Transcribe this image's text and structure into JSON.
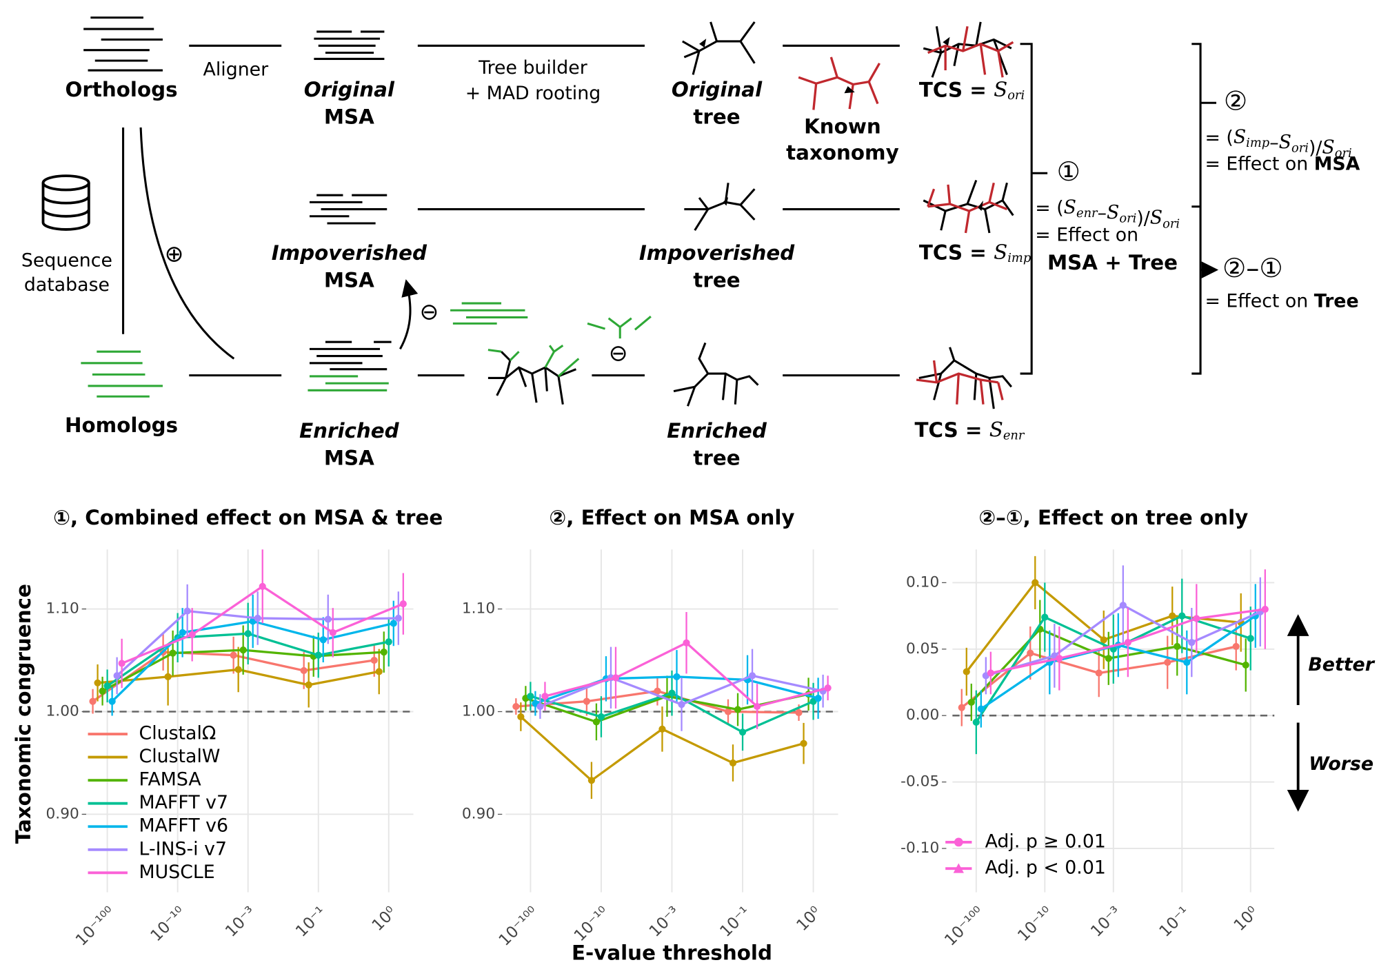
{
  "diagram": {
    "orthologs": "Orthologs",
    "aligner": "Aligner",
    "original_msa": [
      "Original",
      "MSA"
    ],
    "tree_builder": [
      "Tree builder",
      "+ MAD rooting"
    ],
    "original_tree": [
      "Original",
      "tree"
    ],
    "known_taxonomy": [
      "Known",
      "taxonomy"
    ],
    "sequence_database": [
      "Sequence",
      "database"
    ],
    "plus": "⊕",
    "minus": "⊖",
    "homologs": "Homologs",
    "impoverished_msa": [
      "Impoverished",
      "MSA"
    ],
    "impoverished_tree": [
      "Impoverished",
      "tree"
    ],
    "enriched_msa": [
      "Enriched",
      "MSA"
    ],
    "enriched_tree": [
      "Enriched",
      "tree"
    ],
    "tcs_ori": [
      {
        "t": "TCS = "
      },
      {
        "t": "S",
        "sub": "ori"
      }
    ],
    "tcs_imp": [
      {
        "t": "TCS = "
      },
      {
        "t": "S",
        "sub": "imp"
      }
    ],
    "tcs_enr": [
      {
        "t": "TCS = "
      },
      {
        "t": "S",
        "sub": "enr"
      }
    ],
    "one": "①",
    "effect1_formula": [
      {
        "t": "= ("
      },
      {
        "t": "S",
        "sub": "enr"
      },
      {
        "t": "–"
      },
      {
        "t": "S",
        "sub": "ori"
      },
      {
        "t": ")/"
      },
      {
        "t": "S",
        "sub": "ori"
      }
    ],
    "effect1": [
      "= Effect on",
      "MSA + Tree"
    ],
    "two": "②",
    "effect2_formula": [
      {
        "t": "= ("
      },
      {
        "t": "S",
        "sub": "imp"
      },
      {
        "t": "–"
      },
      {
        "t": "S",
        "sub": "ori"
      },
      {
        "t": ")/"
      },
      {
        "t": "S",
        "sub": "ori"
      }
    ],
    "effect2": [
      "= Effect on ",
      "MSA"
    ],
    "two_minus_one": "②–①",
    "effect3": [
      "= Effect on ",
      "Tree"
    ]
  },
  "chart_data": [
    {
      "type": "line",
      "title": "①, Combined effect on MSA & tree",
      "ylabel": "Taxonomic congruence",
      "categories": [
        "10⁻¹⁰⁰",
        "10⁻¹⁰",
        "10⁻³",
        "10⁻¹",
        "10⁰"
      ],
      "ylim": [
        0.824,
        1.158
      ],
      "yticks": [
        {
          "value": 0.9,
          "label": "0.90"
        },
        {
          "value": 1.0,
          "label": "1.00"
        },
        {
          "value": 1.1,
          "label": "1.10"
        }
      ],
      "reference_line": 1.0,
      "grid": true,
      "legend": "bottom-left",
      "series": [
        {
          "name": "ClustalΩ",
          "color": "#f8766d",
          "values": [
            1.01,
            1.058,
            1.055,
            1.04,
            1.05
          ],
          "errors": [
            0.012,
            0.018,
            0.018,
            0.018,
            0.016
          ]
        },
        {
          "name": "ClustalW",
          "color": "#c49a00",
          "values": [
            1.028,
            1.034,
            1.041,
            1.026,
            1.039
          ],
          "errors": [
            0.018,
            0.028,
            0.022,
            0.022,
            0.022
          ]
        },
        {
          "name": "FAMSA",
          "color": "#53b400",
          "values": [
            1.02,
            1.057,
            1.06,
            1.054,
            1.058
          ],
          "errors": [
            0.014,
            0.022,
            0.024,
            0.02,
            0.02
          ]
        },
        {
          "name": "MAFFT v7",
          "color": "#00c094",
          "values": [
            1.025,
            1.072,
            1.076,
            1.055,
            1.068
          ],
          "errors": [
            0.016,
            0.024,
            0.03,
            0.022,
            0.024
          ]
        },
        {
          "name": "MAFFT v6",
          "color": "#00b6eb",
          "values": [
            1.01,
            1.077,
            1.088,
            1.07,
            1.086
          ],
          "errors": [
            0.014,
            0.024,
            0.026,
            0.022,
            0.022
          ]
        },
        {
          "name": "L-INS-i v7",
          "color": "#a58aff",
          "values": [
            1.035,
            1.098,
            1.091,
            1.09,
            1.091
          ],
          "errors": [
            0.018,
            0.026,
            0.026,
            0.024,
            0.026
          ]
        },
        {
          "name": "MUSCLE",
          "color": "#fb61d7",
          "values": [
            1.047,
            1.075,
            1.122,
            1.077,
            1.105
          ],
          "errors": [
            0.024,
            0.026,
            0.036,
            0.024,
            0.03
          ]
        }
      ]
    },
    {
      "type": "line",
      "title": "②, Effect on MSA only",
      "xlabel": "E-value threshold",
      "categories": [
        "10⁻¹⁰⁰",
        "10⁻¹⁰",
        "10⁻³",
        "10⁻¹",
        "10⁰"
      ],
      "ylim": [
        0.824,
        1.158
      ],
      "yticks": [
        {
          "value": 0.9,
          "label": "0.90"
        },
        {
          "value": 1.0,
          "label": "1.00"
        },
        {
          "value": 1.1,
          "label": "1.10"
        }
      ],
      "reference_line": 1.0,
      "grid": true,
      "series": [
        {
          "name": "ClustalΩ",
          "color": "#f8766d",
          "values": [
            1.005,
            1.01,
            1.02,
            1.0,
            0.999
          ],
          "errors": [
            0.008,
            0.014,
            0.014,
            0.012,
            0.008
          ]
        },
        {
          "name": "ClustalW",
          "color": "#c49a00",
          "values": [
            0.995,
            0.933,
            0.983,
            0.95,
            0.969
          ],
          "errors": [
            0.014,
            0.018,
            0.022,
            0.018,
            0.02
          ]
        },
        {
          "name": "FAMSA",
          "color": "#53b400",
          "values": [
            1.013,
            0.99,
            1.015,
            1.002,
            1.017
          ],
          "errors": [
            0.012,
            0.018,
            0.02,
            0.016,
            0.016
          ]
        },
        {
          "name": "MAFFT v7",
          "color": "#00c094",
          "values": [
            1.015,
            0.995,
            1.018,
            0.98,
            1.01
          ],
          "errors": [
            0.014,
            0.02,
            0.022,
            0.018,
            0.018
          ]
        },
        {
          "name": "MAFFT v6",
          "color": "#00b6eb",
          "values": [
            1.008,
            1.032,
            1.034,
            1.031,
            1.013
          ],
          "errors": [
            0.012,
            0.022,
            0.026,
            0.024,
            0.02
          ]
        },
        {
          "name": "L-INS-i v7",
          "color": "#a58aff",
          "values": [
            1.005,
            1.033,
            1.007,
            1.035,
            1.02
          ],
          "errors": [
            0.012,
            0.03,
            0.026,
            0.026,
            0.016
          ]
        },
        {
          "name": "MUSCLE",
          "color": "#fb61d7",
          "values": [
            1.015,
            1.033,
            1.067,
            1.005,
            1.023
          ],
          "errors": [
            0.014,
            0.03,
            0.03,
            0.022,
            0.012
          ]
        }
      ]
    },
    {
      "type": "line",
      "title": "②–①, Effect on tree only",
      "categories": [
        "10⁻¹⁰⁰",
        "10⁻¹⁰",
        "10⁻³",
        "10⁻¹",
        "10⁰"
      ],
      "ylim": [
        -0.133,
        0.125
      ],
      "yticks": [
        {
          "value": -0.1,
          "label": "-0.10"
        },
        {
          "value": -0.05,
          "label": "-0.05"
        },
        {
          "value": 0,
          "label": "0.00"
        },
        {
          "value": 0.05,
          "label": "0.05"
        },
        {
          "value": 0.1,
          "label": "0.10"
        }
      ],
      "reference_line": 0,
      "grid": true,
      "annotations": [
        "Better",
        "Worse"
      ],
      "marker_legend": [
        {
          "label": "Adj. p ≥ 0.01",
          "shape": "circle"
        },
        {
          "label": "Adj. p < 0.01",
          "shape": "triangle"
        }
      ],
      "marker_legend_color": "#fb61d7",
      "series": [
        {
          "name": "ClustalΩ",
          "color": "#f8766d",
          "values": [
            0.006,
            0.047,
            0.032,
            0.04,
            0.052
          ],
          "errors": [
            0.014,
            0.02,
            0.018,
            0.02,
            0.018
          ]
        },
        {
          "name": "ClustalW",
          "color": "#c49a00",
          "values": [
            0.033,
            0.1,
            0.057,
            0.075,
            0.07
          ],
          "errors": [
            0.018,
            0.02,
            0.022,
            0.022,
            0.022
          ]
        },
        {
          "name": "FAMSA",
          "color": "#53b400",
          "values": [
            0.01,
            0.065,
            0.043,
            0.052,
            0.038
          ],
          "errors": [
            0.014,
            0.022,
            0.02,
            0.022,
            0.02
          ]
        },
        {
          "name": "MAFFT v7",
          "color": "#00c094",
          "values": [
            -0.005,
            0.074,
            0.05,
            0.075,
            0.058
          ],
          "errors": [
            0.024,
            0.026,
            0.026,
            0.028,
            0.024
          ]
        },
        {
          "name": "MAFFT v6",
          "color": "#00b6eb",
          "values": [
            0.005,
            0.04,
            0.053,
            0.04,
            0.075
          ],
          "errors": [
            0.014,
            0.024,
            0.024,
            0.024,
            0.024
          ]
        },
        {
          "name": "L-INS-i v7",
          "color": "#a58aff",
          "values": [
            0.03,
            0.045,
            0.083,
            0.055,
            0.078
          ],
          "errors": [
            0.014,
            0.024,
            0.03,
            0.026,
            0.026
          ]
        },
        {
          "name": "MUSCLE",
          "color": "#fb61d7",
          "values": [
            0.032,
            0.043,
            0.055,
            0.073,
            0.08
          ],
          "errors": [
            0.016,
            0.024,
            0.026,
            0.026,
            0.03
          ]
        }
      ]
    }
  ]
}
